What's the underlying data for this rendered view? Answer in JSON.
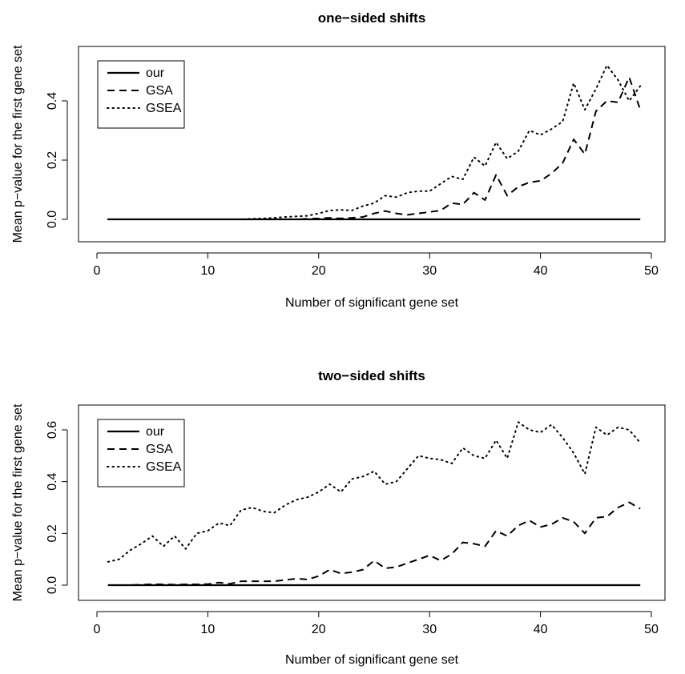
{
  "chart_data": [
    {
      "type": "line",
      "title": "one−sided shifts",
      "xlabel": "Number of significant gene set",
      "ylabel": "Mean p−value for the first gene set",
      "xlim": [
        0,
        50
      ],
      "ylim": [
        0,
        0.5
      ],
      "xticks": [
        0,
        10,
        20,
        30,
        40,
        50
      ],
      "yticks": [
        0.0,
        0.2,
        0.4
      ],
      "ytick_labels": [
        "0.0",
        "0.2",
        "0.4"
      ],
      "grid": false,
      "legend_position": "top-left",
      "x": [
        1,
        2,
        3,
        4,
        5,
        6,
        7,
        8,
        9,
        10,
        11,
        12,
        13,
        14,
        15,
        16,
        17,
        18,
        19,
        20,
        21,
        22,
        23,
        24,
        25,
        26,
        27,
        28,
        29,
        30,
        31,
        32,
        33,
        34,
        35,
        36,
        37,
        38,
        39,
        40,
        41,
        42,
        43,
        44,
        45,
        46,
        47,
        48,
        49
      ],
      "series": [
        {
          "name": "our",
          "style": "solid",
          "values": [
            0,
            0,
            0,
            0,
            0,
            0,
            0,
            0,
            0,
            0,
            0,
            0,
            0,
            0,
            0,
            0,
            0,
            0,
            0,
            0,
            0,
            0,
            0,
            0,
            0,
            0,
            0,
            0,
            0,
            0,
            0,
            0,
            0,
            0,
            0,
            0,
            0,
            0,
            0,
            0,
            0,
            0,
            0,
            0,
            0,
            0,
            0,
            0,
            0
          ]
        },
        {
          "name": "GSA",
          "style": "dashed",
          "values": [
            0,
            0,
            0,
            0,
            0,
            0,
            0,
            0,
            0,
            0,
            0,
            0,
            0,
            0,
            0,
            0,
            0,
            0,
            0.002,
            0.003,
            0.005,
            0.003,
            0.005,
            0.008,
            0.02,
            0.028,
            0.02,
            0.015,
            0.02,
            0.025,
            0.03,
            0.055,
            0.05,
            0.09,
            0.065,
            0.15,
            0.08,
            0.11,
            0.125,
            0.13,
            0.155,
            0.19,
            0.27,
            0.22,
            0.365,
            0.4,
            0.395,
            0.48,
            0.37
          ]
        },
        {
          "name": "GSEA",
          "style": "dotted",
          "values": [
            0,
            0,
            0,
            0,
            0,
            0,
            0,
            0,
            0,
            0,
            0,
            0,
            0,
            0.002,
            0.003,
            0.005,
            0.008,
            0.01,
            0.012,
            0.02,
            0.03,
            0.032,
            0.03,
            0.045,
            0.055,
            0.08,
            0.075,
            0.09,
            0.095,
            0.095,
            0.12,
            0.145,
            0.135,
            0.21,
            0.18,
            0.26,
            0.205,
            0.23,
            0.3,
            0.285,
            0.305,
            0.33,
            0.46,
            0.37,
            0.44,
            0.52,
            0.47,
            0.4,
            0.45
          ]
        }
      ]
    },
    {
      "type": "line",
      "title": "two−sided shifts",
      "xlabel": "Number of significant gene set",
      "ylabel": "Mean p−value for the first gene set",
      "xlim": [
        0,
        50
      ],
      "ylim": [
        0,
        0.65
      ],
      "xticks": [
        0,
        10,
        20,
        30,
        40,
        50
      ],
      "yticks": [
        0.0,
        0.2,
        0.4,
        0.6
      ],
      "ytick_labels": [
        "0.0",
        "0.2",
        "0.4",
        "0.6"
      ],
      "grid": false,
      "legend_position": "top-left",
      "x": [
        1,
        2,
        3,
        4,
        5,
        6,
        7,
        8,
        9,
        10,
        11,
        12,
        13,
        14,
        15,
        16,
        17,
        18,
        19,
        20,
        21,
        22,
        23,
        24,
        25,
        26,
        27,
        28,
        29,
        30,
        31,
        32,
        33,
        34,
        35,
        36,
        37,
        38,
        39,
        40,
        41,
        42,
        43,
        44,
        45,
        46,
        47,
        48,
        49
      ],
      "series": [
        {
          "name": "our",
          "style": "solid",
          "values": [
            0,
            0,
            0,
            0,
            0,
            0,
            0,
            0,
            0,
            0,
            0,
            0,
            0,
            0,
            0,
            0,
            0,
            0,
            0,
            0,
            0,
            0,
            0,
            0,
            0,
            0,
            0,
            0,
            0,
            0,
            0,
            0,
            0,
            0,
            0,
            0,
            0,
            0,
            0,
            0,
            0,
            0,
            0,
            0,
            0,
            0,
            0,
            0,
            0
          ]
        },
        {
          "name": "GSA",
          "style": "dashed",
          "values": [
            0,
            0,
            0,
            0.002,
            0.003,
            0.003,
            0.002,
            0.003,
            0.003,
            0.004,
            0.01,
            0.005,
            0.015,
            0.015,
            0.015,
            0.015,
            0.02,
            0.025,
            0.022,
            0.035,
            0.06,
            0.045,
            0.05,
            0.06,
            0.095,
            0.065,
            0.07,
            0.085,
            0.1,
            0.115,
            0.095,
            0.12,
            0.165,
            0.16,
            0.15,
            0.21,
            0.19,
            0.23,
            0.25,
            0.225,
            0.235,
            0.26,
            0.245,
            0.2,
            0.26,
            0.265,
            0.3,
            0.32,
            0.295
          ]
        },
        {
          "name": "GSEA",
          "style": "dotted",
          "values": [
            0.09,
            0.1,
            0.135,
            0.16,
            0.19,
            0.15,
            0.19,
            0.14,
            0.2,
            0.21,
            0.24,
            0.23,
            0.29,
            0.3,
            0.285,
            0.28,
            0.31,
            0.33,
            0.34,
            0.36,
            0.39,
            0.36,
            0.41,
            0.42,
            0.44,
            0.39,
            0.4,
            0.45,
            0.5,
            0.49,
            0.485,
            0.47,
            0.53,
            0.5,
            0.49,
            0.56,
            0.49,
            0.63,
            0.6,
            0.59,
            0.62,
            0.57,
            0.51,
            0.43,
            0.61,
            0.58,
            0.61,
            0.6,
            0.55
          ]
        }
      ]
    }
  ]
}
